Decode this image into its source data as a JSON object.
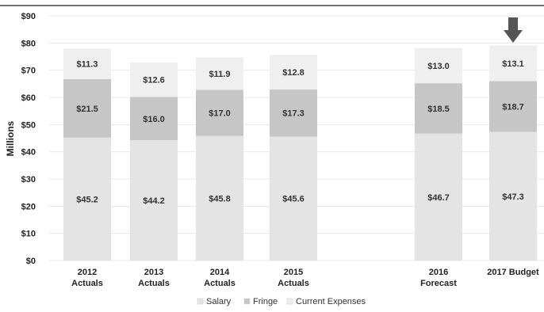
{
  "chart_data": {
    "type": "bar",
    "stacked": true,
    "title": "",
    "xlabel": "",
    "ylabel": "Millions",
    "ylim": [
      0,
      90
    ],
    "ytick_step": 10,
    "ytick_labels": [
      "$0",
      "$10",
      "$20",
      "$30",
      "$40",
      "$50",
      "$60",
      "$70",
      "$80",
      "$90"
    ],
    "categories": [
      [
        "2012",
        "Actuals"
      ],
      [
        "2013",
        "Actuals"
      ],
      [
        "2014",
        "Actuals"
      ],
      [
        "2015",
        "Actuals"
      ],
      [
        "2016",
        "Forecast"
      ],
      [
        "2017 Budget"
      ]
    ],
    "series": [
      {
        "name": "Salary",
        "values": [
          45.2,
          44.2,
          45.8,
          45.6,
          46.7,
          47.3
        ],
        "value_labels": [
          "$45.2",
          "$44.2",
          "$45.8",
          "$45.6",
          "$46.7",
          "$47.3"
        ],
        "color": "#e4e4e4"
      },
      {
        "name": "Fringe",
        "values": [
          21.5,
          16.0,
          17.0,
          17.3,
          18.5,
          18.7
        ],
        "value_labels": [
          "$21.5",
          "$16.0",
          "$17.0",
          "$17.3",
          "$18.5",
          "$18.7"
        ],
        "color": "#c6c6c6"
      },
      {
        "name": "Current Expenses",
        "values": [
          11.3,
          12.6,
          11.9,
          12.8,
          13.0,
          13.1
        ],
        "value_labels": [
          "$11.3",
          "$12.6",
          "$11.9",
          "$12.8",
          "$13.0",
          "$13.1"
        ],
        "color": "#efefef"
      }
    ],
    "grid": true,
    "legend_position": "bottom",
    "highlight": {
      "category_index": 5,
      "marker": "down-arrow-icon",
      "color": "#555555"
    }
  }
}
